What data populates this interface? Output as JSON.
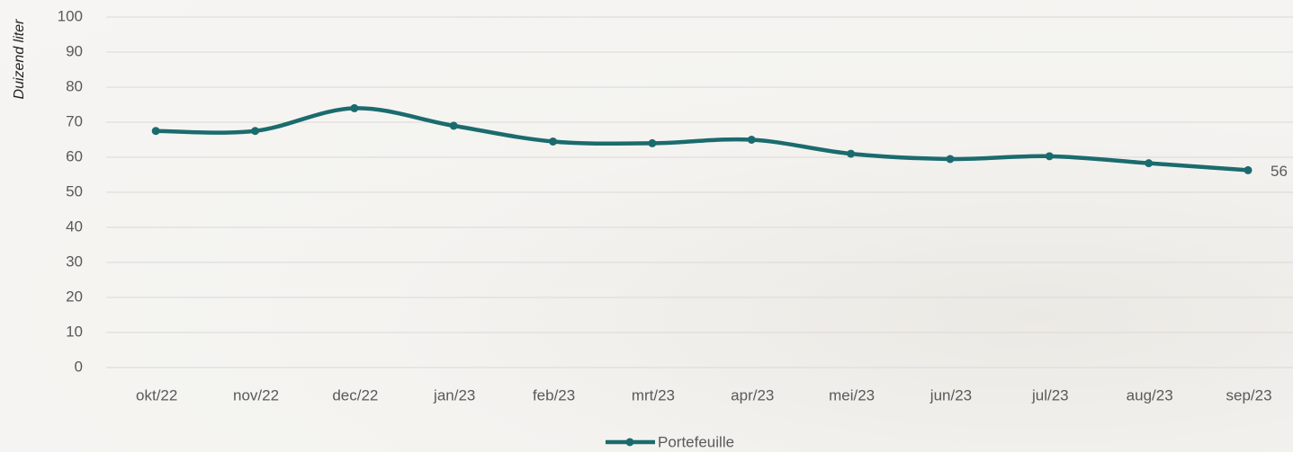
{
  "chart_data": {
    "type": "line",
    "y_label": "Duizend liter",
    "categories": [
      "okt/22",
      "nov/22",
      "dec/22",
      "jan/23",
      "feb/23",
      "mrt/23",
      "apr/23",
      "mei/23",
      "jun/23",
      "jul/23",
      "aug/23",
      "sep/23"
    ],
    "series": [
      {
        "name": "Portefeuille",
        "color": "#1b6b6e",
        "values": [
          67.5,
          67.5,
          74,
          69,
          64.5,
          64,
          65,
          61,
          59.5,
          60.3,
          58.3,
          56.3
        ],
        "value_labels": [
          null,
          null,
          null,
          null,
          null,
          null,
          null,
          null,
          null,
          null,
          null,
          "56"
        ]
      }
    ],
    "ylim": [
      0,
      100
    ],
    "yticks": [
      0,
      10,
      20,
      30,
      40,
      50,
      60,
      70,
      80,
      90,
      100
    ],
    "grid": true,
    "legend": "bottom",
    "smooth": true
  }
}
